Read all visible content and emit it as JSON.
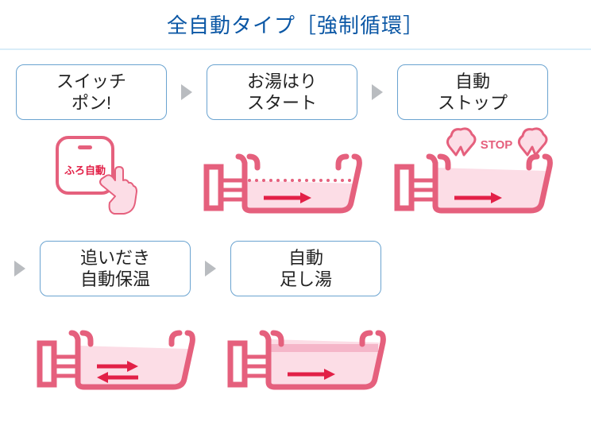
{
  "title": "全自動タイプ［強制循環］",
  "colors": {
    "title_text": "#0b57a5",
    "separator": "#d9edf8",
    "step_border": "#6aa3d0",
    "step_text": "#222222",
    "arrow_fill": "#b9bcc0",
    "tub_stroke": "#e5607d",
    "tub_stroke_dark": "#d14a67",
    "water_fill": "#fcdde6",
    "water_fill_dark": "#f5b6c9",
    "flow_arrow": "#e22047",
    "button_fill": "#ffffff",
    "button_stroke": "#e5607d",
    "button_label": "#e22047",
    "hand_fill": "#fcdde6",
    "hand_stroke": "#e5607d",
    "stop_text": "#e5607d",
    "steam_fill": "#fcdde6",
    "steam_stroke": "#e5607d"
  },
  "steps": [
    {
      "line1": "スイッチ",
      "line2": "ポン!"
    },
    {
      "line1": "お湯はり",
      "line2": "スタート"
    },
    {
      "line1": "自動",
      "line2": "ストップ"
    },
    {
      "line1": "追いだき",
      "line2": "自動保温"
    },
    {
      "line1": "自動",
      "line2": "足し湯"
    }
  ],
  "button_label": "ふろ自動",
  "stop_label": "STOP",
  "style": {
    "title_fontsize": 26,
    "step_fontsize": 22,
    "step_box_width": 190,
    "step_box_height": 70,
    "step_box_radius": 10,
    "tub_stroke_width": 7,
    "flow_arrow_width": 5
  }
}
